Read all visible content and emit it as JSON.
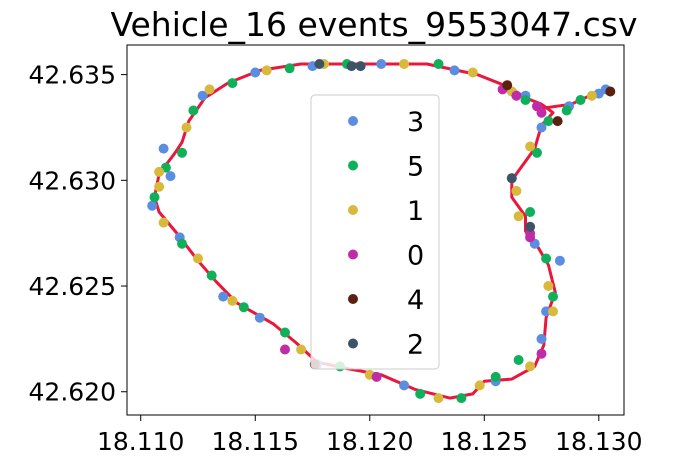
{
  "chart_data": {
    "type": "scatter",
    "title": "Vehicle_16 events_9553047.csv",
    "xlabel": "",
    "ylabel": "",
    "xlim": [
      18.1094,
      18.1311
    ],
    "ylim": [
      42.6189,
      42.6364
    ],
    "xticks": [
      "18.110",
      "18.115",
      "18.120",
      "18.125",
      "18.130"
    ],
    "yticks": [
      "42.620",
      "42.625",
      "42.630",
      "42.635"
    ],
    "legend_position": "center",
    "route_color": "#e8173c",
    "series": [
      {
        "name": "3",
        "color": "#5b8ee0",
        "points": [
          [
            18.1105,
            42.6288
          ],
          [
            18.1117,
            42.6273
          ],
          [
            18.1136,
            42.6245
          ],
          [
            18.1152,
            42.6235
          ],
          [
            18.1177,
            42.6213
          ],
          [
            18.1215,
            42.6203
          ],
          [
            18.1255,
            42.6205
          ],
          [
            18.1275,
            42.6225
          ],
          [
            18.1277,
            42.6238
          ],
          [
            18.1283,
            42.6262
          ],
          [
            18.1272,
            42.627
          ],
          [
            18.1262,
            42.6301
          ],
          [
            18.1275,
            42.6325
          ],
          [
            18.1268,
            42.634
          ],
          [
            18.126,
            42.6344
          ],
          [
            18.1237,
            42.6352
          ],
          [
            18.1205,
            42.6355
          ],
          [
            18.1175,
            42.6354
          ],
          [
            18.115,
            42.6351
          ],
          [
            18.1127,
            42.634
          ],
          [
            18.111,
            42.6315
          ],
          [
            18.1113,
            42.6302
          ],
          [
            18.1287,
            42.6335
          ],
          [
            18.13,
            42.6341
          ],
          [
            18.1303,
            42.6343
          ]
        ]
      },
      {
        "name": "5",
        "color": "#10b05a",
        "points": [
          [
            18.1111,
            42.6306
          ],
          [
            18.1106,
            42.6292
          ],
          [
            18.1118,
            42.627
          ],
          [
            18.1131,
            42.6255
          ],
          [
            18.1145,
            42.624
          ],
          [
            18.1163,
            42.6228
          ],
          [
            18.1187,
            42.6212
          ],
          [
            18.1222,
            42.6199
          ],
          [
            18.124,
            42.6197
          ],
          [
            18.1255,
            42.6207
          ],
          [
            18.1265,
            42.6215
          ],
          [
            18.128,
            42.6245
          ],
          [
            18.1277,
            42.6263
          ],
          [
            18.127,
            42.6285
          ],
          [
            18.1273,
            42.6313
          ],
          [
            18.1278,
            42.6328
          ],
          [
            18.1268,
            42.6338
          ],
          [
            18.123,
            42.6355
          ],
          [
            18.119,
            42.6355
          ],
          [
            18.1165,
            42.6353
          ],
          [
            18.114,
            42.6346
          ],
          [
            18.1123,
            42.6333
          ],
          [
            18.1118,
            42.6313
          ],
          [
            18.1286,
            42.6333
          ],
          [
            18.1292,
            42.6338
          ]
        ]
      },
      {
        "name": "1",
        "color": "#d8b93c",
        "points": [
          [
            18.1108,
            42.6297
          ],
          [
            18.111,
            42.628
          ],
          [
            18.1125,
            42.6263
          ],
          [
            18.114,
            42.6243
          ],
          [
            18.117,
            42.622
          ],
          [
            18.12,
            42.6208
          ],
          [
            18.123,
            42.6197
          ],
          [
            18.1248,
            42.6203
          ],
          [
            18.127,
            42.6212
          ],
          [
            18.128,
            42.6238
          ],
          [
            18.1278,
            42.625
          ],
          [
            18.1265,
            42.6283
          ],
          [
            18.1264,
            42.6295
          ],
          [
            18.127,
            42.6316
          ],
          [
            18.1262,
            42.6342
          ],
          [
            18.1245,
            42.6351
          ],
          [
            18.1215,
            42.6355
          ],
          [
            18.118,
            42.6355
          ],
          [
            18.1155,
            42.6352
          ],
          [
            18.113,
            42.6343
          ],
          [
            18.112,
            42.6325
          ],
          [
            18.1108,
            42.6304
          ],
          [
            18.1297,
            42.634
          ]
        ]
      },
      {
        "name": "0",
        "color": "#c02ca8",
        "points": [
          [
            18.1258,
            42.6343
          ],
          [
            18.1264,
            42.634
          ],
          [
            18.1273,
            42.6335
          ],
          [
            18.1275,
            42.6332
          ],
          [
            18.127,
            42.6275
          ],
          [
            18.127,
            42.6273
          ],
          [
            18.1275,
            42.6218
          ],
          [
            18.1203,
            42.6207
          ],
          [
            18.1163,
            42.622
          ]
        ]
      },
      {
        "name": "4",
        "color": "#5c2010",
        "points": [
          [
            18.1305,
            42.6342
          ],
          [
            18.1282,
            42.6328
          ],
          [
            18.1176,
            42.6213
          ],
          [
            18.126,
            42.6345
          ]
        ]
      },
      {
        "name": "2",
        "color": "#3d5468",
        "points": [
          [
            18.1192,
            42.6354
          ],
          [
            18.1196,
            42.6354
          ],
          [
            18.1178,
            42.6355
          ],
          [
            18.1262,
            42.6301
          ],
          [
            18.127,
            42.6278
          ]
        ]
      }
    ]
  }
}
